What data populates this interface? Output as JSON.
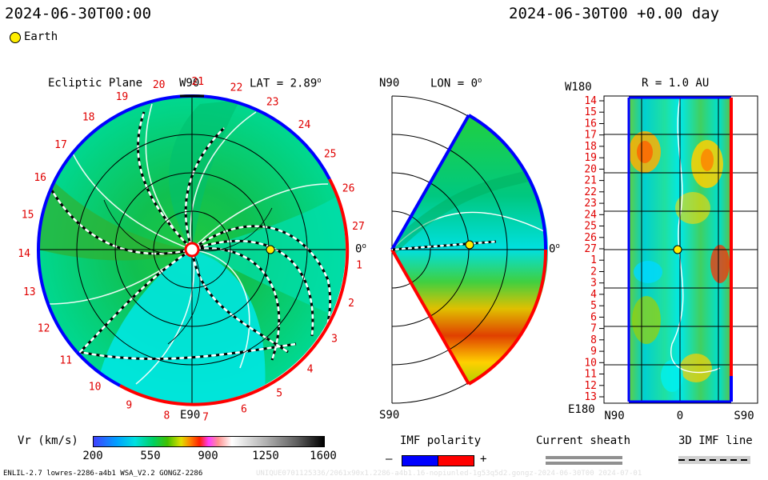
{
  "header": {
    "left_datetime": "2024-06-30T00:00",
    "right_datetime": "2024-06-30T00 +0.00 day"
  },
  "legend": {
    "earth_label": "Earth"
  },
  "panels": {
    "ecliptic": {
      "title": "Ecliptic Plane",
      "lat_label": "LAT = 2.89",
      "deg_symbol": "o",
      "top_label": "W90",
      "bottom_label": "E90",
      "right_label": "0",
      "carrington_labels": [
        "27",
        "1",
        "2",
        "3",
        "4",
        "5",
        "6",
        "7",
        "8",
        "9",
        "10",
        "11",
        "12",
        "13",
        "14",
        "15",
        "16",
        "17",
        "18",
        "19",
        "20",
        "21",
        "22",
        "23",
        "24",
        "25",
        "26"
      ]
    },
    "meridional": {
      "top_label": "N90",
      "lon_label": "LON = 0",
      "bottom_label": "S90",
      "right_label": "0"
    },
    "radial": {
      "title": "R = 1.0 AU",
      "top_left_label": "W180",
      "bottom_left_label": "E180",
      "x_labels": [
        "N90",
        "0",
        "S90"
      ],
      "y_labels": [
        "14",
        "15",
        "16",
        "17",
        "18",
        "19",
        "20",
        "21",
        "22",
        "23",
        "24",
        "25",
        "26",
        "27",
        "1",
        "2",
        "3",
        "4",
        "5",
        "6",
        "7",
        "8",
        "9",
        "10",
        "11",
        "12",
        "13"
      ]
    }
  },
  "colorbar": {
    "label": "Vr (km/s)",
    "ticks": [
      "200",
      "550",
      "900",
      "1250",
      "1600"
    ],
    "range": [
      200,
      1600
    ]
  },
  "imf_legend": {
    "polarity_label": "IMF polarity",
    "minus": "–",
    "plus": "+",
    "sheath_label": "Current sheath",
    "line_label": "3D IMF line"
  },
  "footer": {
    "left": "ENLIL-2.7 lowres-2286-a4b1 WSA_V2.2 GONGZ-2286",
    "right": "UNIQUE0701125336/2061x90x1.2286-a4b1.16-nopiunled-1g53q5d2.gongz-2024-06-30T00 2024-07-01"
  },
  "colors": {
    "positive_polarity": "#ff0000",
    "negative_polarity": "#0000ff",
    "earth": "#ffee00"
  }
}
